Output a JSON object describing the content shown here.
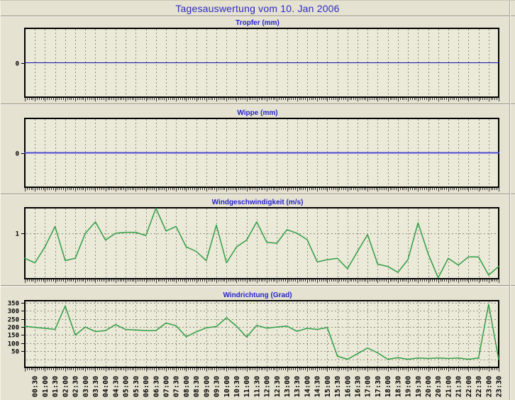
{
  "page_title": "Tagesauswertung vom 10. Jan 2006",
  "colors": {
    "page_bg": "#e6e2d2",
    "plot_bg": "#ebe9d8",
    "plot_border": "#000000",
    "grid": "#8f8f80",
    "title_blue": "#2a2ac4",
    "chart_title_blue": "#2424cc",
    "green_line": "#2f9e44",
    "blue_line_thin": "#1414aa",
    "blue_line_thick": "#4a4ad6",
    "axis_text": "#000000"
  },
  "x_axis": {
    "start_time": "00:00",
    "interval_minutes": 30,
    "labels": [
      "00:30",
      "01:00",
      "01:30",
      "02:00",
      "02:30",
      "03:00",
      "03:30",
      "04:00",
      "04:30",
      "05:00",
      "05:30",
      "06:00",
      "06:30",
      "07:00",
      "07:30",
      "08:00",
      "08:30",
      "09:00",
      "09:30",
      "10:00",
      "10:30",
      "11:00",
      "11:30",
      "12:00",
      "12:30",
      "13:00",
      "13:30",
      "14:00",
      "14:30",
      "15:00",
      "15:30",
      "16:00",
      "16:30",
      "17:00",
      "17:30",
      "18:00",
      "18:30",
      "19:00",
      "19:30",
      "20:00",
      "20:30",
      "21:00",
      "21:30",
      "22:00",
      "22:30",
      "23:00",
      "23:30"
    ]
  },
  "chart_data": [
    {
      "id": "tropfer",
      "type": "line",
      "title": "Tropfer (mm)",
      "line_color": "#1414aa",
      "line_width": 1,
      "ymin": -1,
      "ymax": 1,
      "label_ticks": [
        0
      ],
      "grid_ticks": [],
      "show_x_labels": false,
      "values": [
        0,
        0,
        0,
        0,
        0,
        0,
        0,
        0,
        0,
        0,
        0,
        0,
        0,
        0,
        0,
        0,
        0,
        0,
        0,
        0,
        0,
        0,
        0,
        0,
        0,
        0,
        0,
        0,
        0,
        0,
        0,
        0,
        0,
        0,
        0,
        0,
        0,
        0,
        0,
        0,
        0,
        0,
        0,
        0,
        0,
        0,
        0,
        0
      ]
    },
    {
      "id": "wippe",
      "type": "line",
      "title": "Wippe (mm)",
      "line_color": "#4a4ad6",
      "line_width": 2,
      "ymin": -1,
      "ymax": 1,
      "label_ticks": [
        0
      ],
      "grid_ticks": [],
      "show_x_labels": false,
      "values": [
        0,
        0,
        0,
        0,
        0,
        0,
        0,
        0,
        0,
        0,
        0,
        0,
        0,
        0,
        0,
        0,
        0,
        0,
        0,
        0,
        0,
        0,
        0,
        0,
        0,
        0,
        0,
        0,
        0,
        0,
        0,
        0,
        0,
        0,
        0,
        0,
        0,
        0,
        0,
        0,
        0,
        0,
        0,
        0,
        0,
        0,
        0,
        0
      ]
    },
    {
      "id": "windgeschwindigkeit",
      "type": "line",
      "title": "Windgeschwindigkeit (m/s)",
      "line_color": "#2f9e44",
      "line_width": 1.5,
      "ymin": 0,
      "ymax": 1.56,
      "label_ticks": [
        1
      ],
      "grid_ticks": [
        1
      ],
      "show_x_labels": false,
      "values": [
        0.45,
        0.35,
        0.7,
        1.15,
        0.4,
        0.45,
        1.0,
        1.25,
        0.85,
        1.0,
        1.02,
        1.02,
        0.95,
        1.55,
        1.05,
        1.15,
        0.7,
        0.6,
        0.4,
        1.18,
        0.35,
        0.7,
        0.85,
        1.25,
        0.8,
        0.78,
        1.08,
        1.0,
        0.86,
        0.37,
        0.42,
        0.45,
        0.22,
        0.6,
        0.97,
        0.32,
        0.27,
        0.14,
        0.42,
        1.23,
        0.55,
        0.02,
        0.45,
        0.3,
        0.48,
        0.48,
        0.08,
        0.27
      ]
    },
    {
      "id": "windrichtung",
      "type": "line",
      "title": "Windrichtung (Grad)",
      "line_color": "#2f9e44",
      "line_width": 1.5,
      "ymin": -50,
      "ymax": 363,
      "label_ticks": [
        350,
        300,
        250,
        200,
        150,
        100,
        50
      ],
      "grid_ticks": [
        350,
        300,
        250,
        200,
        150,
        100,
        50,
        0
      ],
      "show_x_labels": true,
      "values": [
        205,
        198,
        192,
        185,
        330,
        150,
        200,
        172,
        178,
        215,
        185,
        182,
        178,
        178,
        225,
        208,
        140,
        170,
        195,
        203,
        258,
        205,
        138,
        210,
        193,
        200,
        206,
        173,
        192,
        185,
        197,
        20,
        0,
        35,
        70,
        40,
        0,
        10,
        0,
        8,
        5,
        8,
        5,
        8,
        0,
        8,
        340,
        0
      ]
    }
  ]
}
